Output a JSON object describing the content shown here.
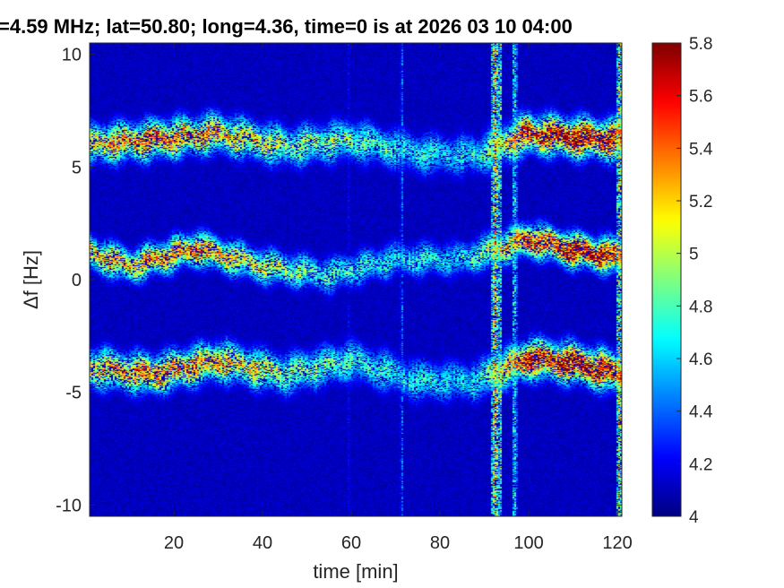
{
  "chart_data": {
    "type": "heatmap",
    "title": "=4.59 MHz;  lat=50.80; long=4.36, time=0 is at 2026 03 10 04:00",
    "xlabel": "time [min]",
    "ylabel": "Δf [Hz]",
    "xlim": [
      1,
      121
    ],
    "ylim": [
      -10.5,
      10.5
    ],
    "x_ticks": [
      20,
      40,
      60,
      80,
      100,
      120
    ],
    "x_tick_labels": [
      "20",
      "40",
      "60",
      "80",
      "100",
      "120"
    ],
    "y_ticks": [
      10,
      5,
      0,
      -5,
      -10
    ],
    "y_tick_labels": [
      "10",
      "5",
      "0",
      "-5",
      "-10"
    ],
    "colormap": "jet",
    "clim": [
      4,
      5.8
    ],
    "colorbar": {
      "ticks": [
        5.8,
        5.6,
        5.4,
        5.2,
        5,
        4.8,
        4.6,
        4.4,
        4.2,
        4
      ],
      "tick_labels": [
        "5.8",
        "5.6",
        "5.4",
        "5.2",
        "5",
        "4.8",
        "4.6",
        "4.4",
        "4.2",
        "4"
      ]
    },
    "background_level": 4.05,
    "bands": [
      {
        "description_values": "upper echo",
        "t": [
          1,
          15,
          30,
          45,
          60,
          75,
          88,
          100,
          110,
          121
        ],
        "df": [
          6.0,
          6.2,
          6.5,
          5.9,
          6.2,
          5.6,
          5.5,
          6.5,
          6.3,
          6.2
        ],
        "width_hz": 0.7,
        "intensity": [
          5.1,
          5.3,
          5.2,
          4.9,
          4.8,
          4.6,
          4.6,
          5.5,
          5.6,
          5.5
        ]
      },
      {
        "description_values": "middle echo",
        "t": [
          1,
          10,
          25,
          40,
          55,
          70,
          85,
          100,
          110,
          121
        ],
        "df": [
          1.2,
          0.6,
          1.4,
          0.6,
          0.2,
          0.9,
          0.9,
          1.8,
          1.3,
          1.0
        ],
        "width_hz": 0.6,
        "intensity": [
          5.2,
          5.1,
          5.3,
          5.0,
          4.7,
          4.6,
          4.6,
          5.4,
          5.6,
          5.6
        ]
      },
      {
        "description_values": "lower echo",
        "t": [
          1,
          15,
          30,
          45,
          60,
          75,
          88,
          100,
          110,
          121
        ],
        "df": [
          -3.9,
          -4.2,
          -3.6,
          -4.2,
          -3.6,
          -4.5,
          -4.5,
          -3.5,
          -3.7,
          -4.2
        ],
        "width_hz": 0.7,
        "intensity": [
          5.1,
          5.3,
          5.2,
          4.9,
          4.7,
          4.6,
          4.6,
          5.5,
          5.6,
          5.5
        ]
      }
    ],
    "vertical_streaks": [
      {
        "t": 92.5,
        "width_min": 0.9,
        "intensity": 5.4
      },
      {
        "t": 93.6,
        "width_min": 0.5,
        "intensity": 5.1
      },
      {
        "t": 96.8,
        "width_min": 0.6,
        "intensity": 4.9
      },
      {
        "t": 120.5,
        "width_min": 0.7,
        "intensity": 5.3
      },
      {
        "t": 71.5,
        "width_min": 0.4,
        "intensity": 4.5
      },
      {
        "t": 59.5,
        "width_min": 0.3,
        "intensity": 4.3
      }
    ]
  }
}
